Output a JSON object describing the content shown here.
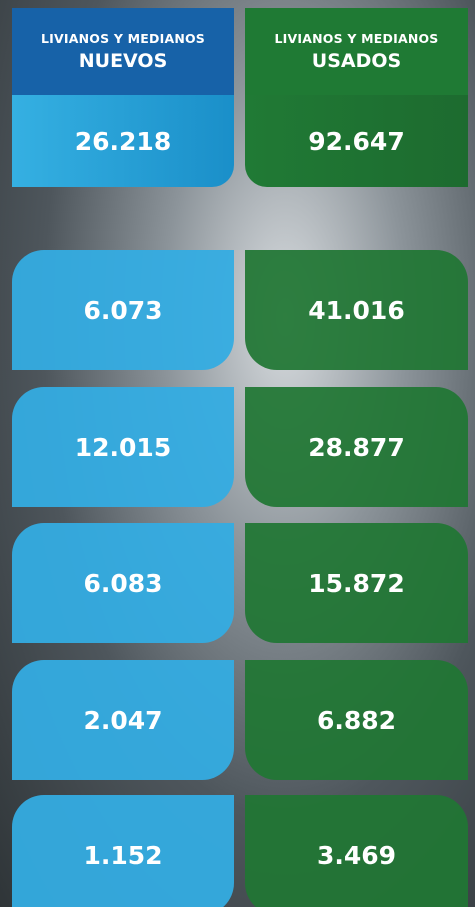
{
  "columns": [
    {
      "subtitle": "LIVIANOS Y MEDIANOS",
      "title": "NUEVOS",
      "total": "26.218"
    },
    {
      "subtitle": "LIVIANOS Y MEDIANOS",
      "title": "USADOS",
      "total": "92.647"
    }
  ],
  "rows": [
    [
      "6.073",
      "41.016"
    ],
    [
      "12.015",
      "28.877"
    ],
    [
      "6.083",
      "15.872"
    ],
    [
      "2.047",
      "6.882"
    ],
    [
      "1.152",
      "3.469"
    ]
  ]
}
